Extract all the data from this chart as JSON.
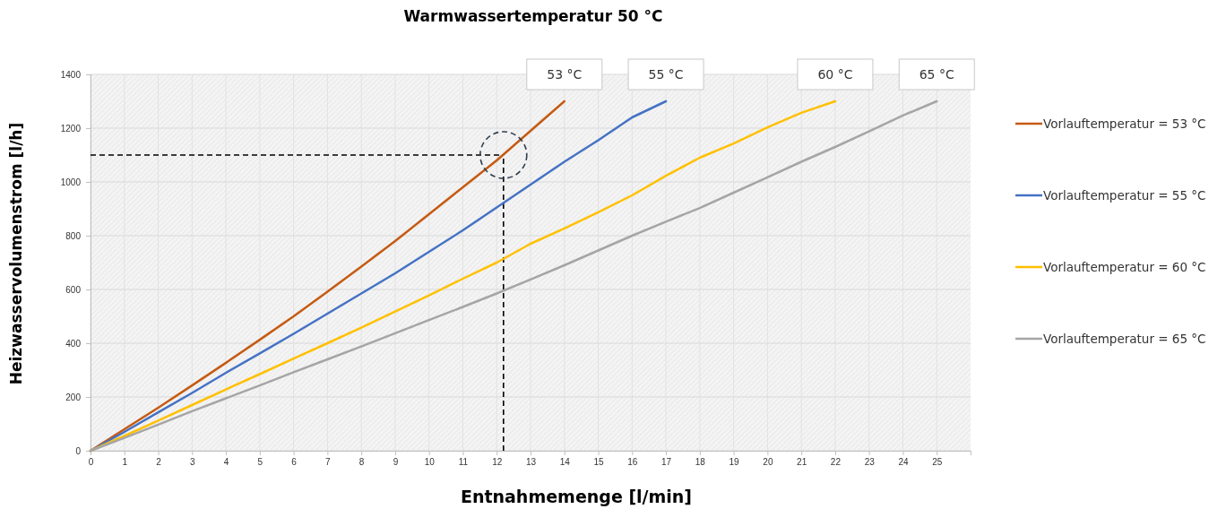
{
  "chart_data": {
    "type": "line",
    "title": "Warmwassertemperatur 50 °C",
    "xlabel": "Entnahmemenge [l/min]",
    "ylabel": "Heizwasservolumenstrom [l/h]",
    "xlim": [
      0,
      26
    ],
    "xticks": [
      0,
      1,
      2,
      3,
      4,
      5,
      6,
      7,
      8,
      9,
      10,
      11,
      12,
      13,
      14,
      15,
      16,
      17,
      18,
      19,
      20,
      21,
      22,
      23,
      24,
      25
    ],
    "ylim": [
      0,
      1400
    ],
    "yticks": [
      0,
      200,
      400,
      600,
      800,
      1000,
      1200,
      1400
    ],
    "grid": true,
    "legend": "right",
    "line_style": "solid",
    "marker": "none",
    "series": [
      {
        "name": "Vorlauftemperatur = 53 °C",
        "color": "#c55a11",
        "x": [
          0,
          1,
          2,
          3,
          4,
          5,
          6,
          7,
          8,
          9,
          10,
          11,
          12,
          13,
          14
        ],
        "values": [
          0,
          80,
          160,
          243,
          327,
          413,
          500,
          592,
          685,
          780,
          880,
          980,
          1080,
          1190,
          1300
        ]
      },
      {
        "name": "Vorlauftemperatur = 55 °C",
        "color": "#4472c4",
        "x": [
          0,
          1,
          2,
          3,
          4,
          5,
          6,
          7,
          8,
          9,
          10,
          11,
          12,
          13,
          14,
          15,
          16,
          17
        ],
        "values": [
          0,
          70,
          143,
          215,
          290,
          362,
          435,
          510,
          585,
          660,
          740,
          820,
          905,
          990,
          1075,
          1155,
          1240,
          1300
        ]
      },
      {
        "name": "Vorlauftemperatur = 60 °C",
        "color": "#ffc000",
        "x": [
          0,
          1,
          2,
          3,
          4,
          5,
          6,
          7,
          8,
          9,
          10,
          11,
          12,
          13,
          14,
          15,
          16,
          17,
          18,
          19,
          20,
          21,
          22
        ],
        "values": [
          0,
          55,
          112,
          170,
          228,
          285,
          343,
          400,
          458,
          518,
          578,
          640,
          700,
          770,
          827,
          887,
          950,
          1023,
          1090,
          1143,
          1203,
          1257,
          1300
        ]
      },
      {
        "name": "Vorlauftemperatur = 65 °C",
        "color": "#a5a5a5",
        "x": [
          0,
          1,
          2,
          3,
          4,
          5,
          6,
          7,
          8,
          9,
          10,
          11,
          12,
          13,
          14,
          15,
          16,
          17,
          18,
          19,
          20,
          21,
          22,
          23,
          24,
          25
        ],
        "values": [
          0,
          48,
          97,
          147,
          195,
          243,
          292,
          340,
          388,
          437,
          486,
          535,
          585,
          637,
          690,
          745,
          800,
          852,
          903,
          960,
          1017,
          1075,
          1130,
          1188,
          1247,
          1300
        ]
      }
    ],
    "ref_lines": [
      {
        "axis": "y",
        "value": 1100,
        "color": "#000000",
        "line_style": "dashed"
      },
      {
        "axis": "x",
        "value": 12.2,
        "color": "#000000",
        "line_style": "dashed"
      }
    ],
    "annotations": [
      {
        "text": "53 °C",
        "x": 14,
        "y": 1300
      },
      {
        "text": "55 °C",
        "x": 17,
        "y": 1300
      },
      {
        "text": "60 °C",
        "x": 22,
        "y": 1300
      },
      {
        "text": "65 °C",
        "x": 25,
        "y": 1300
      }
    ]
  }
}
